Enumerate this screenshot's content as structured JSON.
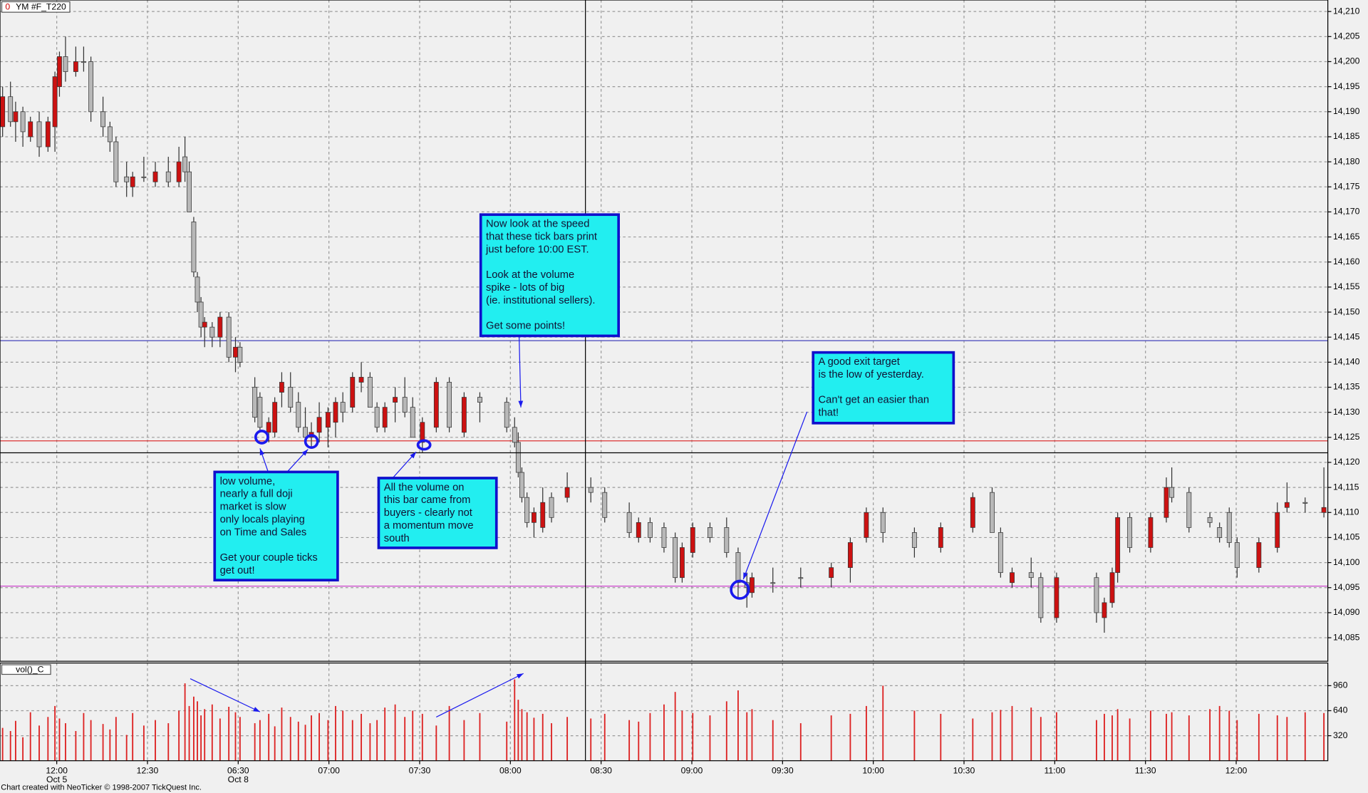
{
  "chart_data": [
    {
      "type": "candlestick",
      "label_prefix": "0",
      "title": "YM #F_T220",
      "up_color": "#cc1111",
      "down_color": "#b8b8b8",
      "grid": true,
      "xlim": [
        -18.75,
        420.3
      ],
      "ylim": [
        14080.3,
        14212.3
      ],
      "xticks": [
        {
          "value": 0,
          "label": "12:00"
        },
        {
          "value": 30,
          "label": "12:30"
        },
        {
          "value": 60,
          "label": "06:30"
        },
        {
          "value": 90,
          "label": "07:00"
        },
        {
          "value": 120,
          "label": "07:30"
        },
        {
          "value": 150,
          "label": "08:00"
        },
        {
          "value": 180,
          "label": "08:30"
        },
        {
          "value": 210,
          "label": "09:00"
        },
        {
          "value": 240,
          "label": "09:30"
        },
        {
          "value": 270,
          "label": "10:00"
        },
        {
          "value": 300,
          "label": "10:30"
        },
        {
          "value": 330,
          "label": "11:00"
        },
        {
          "value": 360,
          "label": "11:30"
        },
        {
          "value": 390,
          "label": "12:00"
        }
      ],
      "date_labels": [
        {
          "value": 0,
          "label": "Oct 5"
        },
        {
          "value": 60,
          "label": "Oct 8"
        }
      ],
      "yticks": [
        {
          "value": 14085,
          "label": "14,085"
        },
        {
          "value": 14090,
          "label": "14,090"
        },
        {
          "value": 14095,
          "label": "14,095"
        },
        {
          "value": 14100,
          "label": "14,100"
        },
        {
          "value": 14105,
          "label": "14,105"
        },
        {
          "value": 14110,
          "label": "14,110"
        },
        {
          "value": 14115,
          "label": "14,115"
        },
        {
          "value": 14120,
          "label": "14,120"
        },
        {
          "value": 14125,
          "label": "14,125"
        },
        {
          "value": 14130,
          "label": "14,130"
        },
        {
          "value": 14135,
          "label": "14,135"
        },
        {
          "value": 14140,
          "label": "14,140"
        },
        {
          "value": 14145,
          "label": "14,145"
        },
        {
          "value": 14150,
          "label": "14,150"
        },
        {
          "value": 14155,
          "label": "14,155"
        },
        {
          "value": 14160,
          "label": "14,160"
        },
        {
          "value": 14165,
          "label": "14,165"
        },
        {
          "value": 14170,
          "label": "14,170"
        },
        {
          "value": 14175,
          "label": "14,175"
        },
        {
          "value": 14180,
          "label": "14,180"
        },
        {
          "value": 14185,
          "label": "14,185"
        },
        {
          "value": 14190,
          "label": "14,190"
        },
        {
          "value": 14195,
          "label": "14,195"
        },
        {
          "value": 14200,
          "label": "14,200"
        },
        {
          "value": 14205,
          "label": "14,205"
        },
        {
          "value": 14210,
          "label": "14,210"
        }
      ],
      "hlines": [
        {
          "value": 14144.3,
          "color": "#4444bb"
        },
        {
          "value": 14124.3,
          "color": "#dd3333"
        },
        {
          "value": 14095.3,
          "color": "#cc44cc"
        }
      ],
      "x": [
        -17.9,
        -15.3,
        -13.6,
        -11.2,
        -8.7,
        -5.8,
        -2.9,
        -0.6,
        0.9,
        2.9,
        6.3,
        8.9,
        11.3,
        15.3,
        17.6,
        19.6,
        23.1,
        25.1,
        28.8,
        32.6,
        36.9,
        40.4,
        42.4,
        43.8,
        45.3,
        46.5,
        47.7,
        48.9,
        51.4,
        54,
        56.9,
        59.1,
        60.6,
        65.5,
        67.2,
        70.1,
        72.1,
        74.4,
        77.3,
        79.9,
        82.2,
        84.2,
        86.8,
        89.7,
        92.2,
        94.6,
        97.8,
        100.7,
        103.6,
        105.9,
        108.5,
        111.9,
        115.1,
        117.7,
        120.9,
        125.5,
        129.8,
        134.7,
        139.9,
        148.8,
        151.4,
        152.6,
        153.8,
        155.5,
        157.8,
        160.7,
        163.6,
        168.8,
        176.6,
        181.2,
        189.3,
        192.4,
        196.2,
        200.8,
        204.5,
        206.8,
        210.3,
        216,
        221.5,
        225.3,
        228.2,
        229.9,
        236.8,
        246,
        256.1,
        262.4,
        267.7,
        273.2,
        283.6,
        292.3,
        302.9,
        309.3,
        312.1,
        315.9,
        322.2,
        325.4,
        330.6,
        343.8,
        346.4,
        349,
        350.8,
        354.8,
        361.7,
        366.9,
        368.7,
        374.4,
        381.3,
        384.5,
        387.7,
        390.3,
        397.5,
        403.6,
        406.8,
        412.8,
        419
      ],
      "open": [
        14187,
        14193,
        14188,
        14190,
        14185,
        14188,
        14183,
        14187,
        14195,
        14201,
        14198,
        14200,
        14200,
        14190,
        14187,
        14184,
        14177,
        14175,
        14177,
        14176,
        14178,
        14176,
        14181,
        14178,
        14168,
        14157,
        14152,
        14147,
        14147,
        14145,
        14149,
        14141,
        14143,
        14135,
        14133,
        14126,
        14126,
        14134,
        14135,
        14132,
        14127,
        14125,
        14126,
        14127,
        14128,
        14132,
        14131,
        14136,
        14137,
        14131,
        14127,
        14132,
        14133,
        14131,
        14124,
        14127,
        14136,
        14126,
        14133,
        14132,
        14127,
        14124,
        14118,
        14113,
        14108,
        14107,
        14113,
        14113,
        14115,
        14114,
        14110,
        14105,
        14108,
        14107,
        14105,
        14097,
        14102,
        14107,
        14107,
        14102,
        14096,
        14094,
        14096,
        14097,
        14097,
        14099,
        14105,
        14110,
        14106,
        14103,
        14107,
        14114,
        14106,
        14096,
        14098,
        14097,
        14089,
        14097,
        14089,
        14092,
        14098,
        14109,
        14103,
        14109,
        14115,
        14114,
        14109,
        14107,
        14110,
        14104,
        14099,
        14103,
        14111,
        14112,
        14110
      ],
      "high": [
        14195,
        14196,
        14192,
        14191,
        14189,
        14190,
        14189,
        14198,
        14202,
        14205,
        14203,
        14203,
        14201,
        14193,
        14188,
        14185,
        14180,
        14178,
        14181,
        14180,
        14181,
        14183,
        14185,
        14180,
        14169,
        14158,
        14153,
        14149,
        14148,
        14150,
        14150,
        14145,
        14144,
        14137,
        14134,
        14129,
        14133,
        14138,
        14138,
        14134,
        14131,
        14128,
        14132,
        14131,
        14133,
        14134,
        14138,
        14140,
        14138,
        14132,
        14132,
        14135,
        14137,
        14133,
        14129,
        14137,
        14137,
        14134,
        14134,
        14133,
        14129,
        14126,
        14119,
        14114,
        14111,
        14115,
        14114,
        14118,
        14117,
        14115,
        14112,
        14109,
        14109,
        14108,
        14106,
        14104,
        14108,
        14108,
        14109,
        14103,
        14098,
        14098,
        14099,
        14099,
        14100,
        14105,
        14111,
        14111,
        14107,
        14108,
        14114,
        14115,
        14107,
        14099,
        14101,
        14098,
        14098,
        14098,
        14093,
        14099,
        14110,
        14110,
        14110,
        14117,
        14119,
        14115,
        14110,
        14108,
        14111,
        14105,
        14105,
        14112,
        14116,
        14113,
        14119
      ],
      "low": [
        14185,
        14187,
        14184,
        14183,
        14184,
        14181,
        14182,
        14182,
        14193,
        14196,
        14197,
        14198,
        14188,
        14185,
        14182,
        14175,
        14173,
        14173,
        14176,
        14175,
        14175,
        14175,
        14176,
        14170,
        14157,
        14150,
        14145,
        14143,
        14143,
        14143,
        14140,
        14138,
        14139,
        14128,
        14126,
        14124,
        14125,
        14131,
        14130,
        14126,
        14124,
        14123,
        14124,
        14123,
        14125,
        14128,
        14130,
        14134,
        14131,
        14126,
        14126,
        14128,
        14129,
        14125,
        14122,
        14126,
        14126,
        14125,
        14128,
        14126,
        14123,
        14117,
        14112,
        14107,
        14105,
        14106,
        14108,
        14112,
        14112,
        14108,
        14105,
        14104,
        14104,
        14102,
        14096,
        14096,
        14101,
        14104,
        14101,
        14093,
        14091,
        14093,
        14094,
        14095,
        14095,
        14096,
        14104,
        14104,
        14101,
        14102,
        14106,
        14106,
        14097,
        14095,
        14095,
        14088,
        14088,
        14088,
        14086,
        14091,
        14096,
        14102,
        14102,
        14108,
        14112,
        14106,
        14107,
        14104,
        14103,
        14097,
        14098,
        14102,
        14110,
        14110,
        14109
      ],
      "close": [
        14193,
        14188,
        14190,
        14186,
        14188,
        14183,
        14188,
        14197,
        14201,
        14198,
        14200,
        14200,
        14190,
        14187,
        14184,
        14176,
        14176,
        14177,
        14177,
        14178,
        14176,
        14180,
        14178,
        14170,
        14158,
        14152,
        14147,
        14148,
        14145,
        14149,
        14141,
        14143,
        14140,
        14129,
        14127,
        14128,
        14132,
        14136,
        14131,
        14127,
        14125,
        14126,
        14129,
        14130,
        14132,
        14130,
        14137,
        14137,
        14131,
        14127,
        14131,
        14133,
        14130,
        14125,
        14128,
        14136,
        14127,
        14133,
        14132,
        14127,
        14124,
        14118,
        14113,
        14108,
        14110,
        14112,
        14109,
        14115,
        14114,
        14109,
        14106,
        14108,
        14105,
        14103,
        14097,
        14103,
        14107,
        14105,
        14102,
        14096,
        14095,
        14097,
        14096,
        14097,
        14099,
        14104,
        14110,
        14106,
        14103,
        14107,
        14113,
        14106,
        14098,
        14098,
        14097,
        14089,
        14097,
        14090,
        14092,
        14098,
        14109,
        14103,
        14109,
        14115,
        14113,
        14107,
        14108,
        14105,
        14104,
        14099,
        14104,
        14110,
        14112,
        14112,
        14111
      ]
    },
    {
      "type": "bar",
      "title": "vol()_C",
      "color": "#dd2222",
      "grid": true,
      "xlim": [
        -18.75,
        420.3
      ],
      "ylim": [
        0,
        1250
      ],
      "yticks": [
        320,
        640,
        960
      ],
      "x": [
        -17.9,
        -15.3,
        -13.6,
        -11.2,
        -8.7,
        -5.8,
        -2.9,
        -0.6,
        0.9,
        2.9,
        6.3,
        8.9,
        11.3,
        15.3,
        17.6,
        19.6,
        23.1,
        25.1,
        28.8,
        32.6,
        36.9,
        40.4,
        42.4,
        43.8,
        45.3,
        46.5,
        47.7,
        48.9,
        51.4,
        54,
        56.9,
        59.1,
        60.6,
        65.5,
        67.2,
        70.1,
        72.1,
        74.4,
        77.3,
        79.9,
        82.2,
        84.2,
        86.8,
        89.7,
        92.2,
        94.6,
        97.8,
        100.7,
        103.6,
        105.9,
        108.5,
        111.9,
        115.1,
        117.7,
        120.9,
        125.5,
        129.8,
        134.7,
        139.9,
        148.8,
        151.4,
        152.6,
        153.8,
        155.5,
        157.8,
        160.7,
        163.6,
        168.8,
        176.6,
        181.2,
        189.3,
        192.4,
        196.2,
        200.8,
        204.5,
        206.8,
        210.3,
        216,
        221.5,
        225.3,
        228.2,
        229.9,
        236.8,
        246,
        256.1,
        262.4,
        267.7,
        273.2,
        283.6,
        292.3,
        302.9,
        309.3,
        312.1,
        315.9,
        322.2,
        325.4,
        330.6,
        343.8,
        346.4,
        349,
        350.8,
        354.8,
        361.7,
        366.9,
        368.7,
        374.4,
        381.3,
        384.5,
        387.7,
        390.3,
        397.5,
        403.6,
        406.8,
        412.8,
        419
      ],
      "values": [
        420,
        380,
        510,
        300,
        620,
        450,
        560,
        700,
        540,
        480,
        380,
        610,
        520,
        470,
        400,
        560,
        330,
        610,
        450,
        520,
        480,
        640,
        990,
        700,
        820,
        760,
        580,
        660,
        720,
        540,
        690,
        620,
        560,
        480,
        520,
        600,
        440,
        680,
        560,
        500,
        460,
        580,
        610,
        520,
        700,
        640,
        520,
        600,
        480,
        520,
        680,
        720,
        560,
        640,
        600,
        450,
        700,
        520,
        610,
        500,
        1040,
        780,
        660,
        620,
        550,
        600,
        480,
        560,
        540,
        600,
        520,
        500,
        610,
        720,
        880,
        640,
        610,
        580,
        760,
        900,
        620,
        660,
        520,
        480,
        580,
        600,
        700,
        960,
        640,
        600,
        540,
        620,
        650,
        700,
        680,
        560,
        620,
        520,
        600,
        580,
        660,
        540,
        640,
        600,
        620,
        580,
        660,
        700,
        640,
        520,
        600,
        580,
        560,
        620,
        610
      ]
    }
  ],
  "annotations": [
    {
      "paragraphs": [
        [
          "low volume,",
          "nearly a full doji",
          "market is slow",
          "only locals playing",
          "on Time and Sales"
        ],
        [
          "Get your couple ticks",
          "get out!"
        ]
      ]
    },
    {
      "paragraphs": [
        [
          "All the volume on",
          "this bar came from",
          "buyers - clearly not",
          "a momentum move",
          "south"
        ]
      ]
    },
    {
      "paragraphs": [
        [
          "Now look at the speed",
          "that these tick bars print",
          "just before 10:00 EST."
        ],
        [
          "Look at the volume",
          "spike - lots of big",
          "(ie. institutional sellers)."
        ],
        [
          "Get some points!"
        ]
      ]
    },
    {
      "paragraphs": [
        [
          "A good exit target",
          "is the low of yesterday."
        ],
        [
          "Can't get an easier than",
          "that!"
        ]
      ]
    }
  ],
  "footer": "Chart created with NeoTicker © 1998-2007 TickQuest Inc."
}
